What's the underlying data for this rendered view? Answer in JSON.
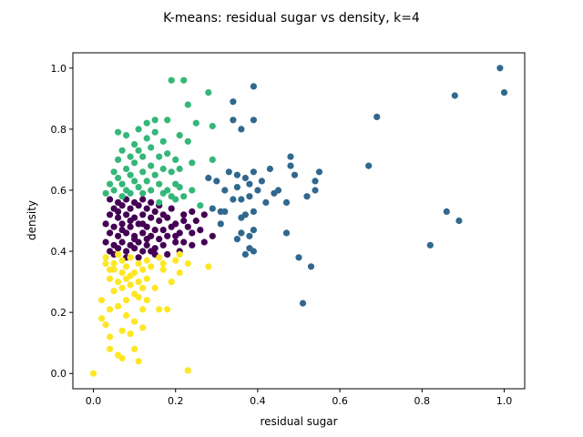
{
  "chart_data": {
    "type": "scatter",
    "title": "K-means: residual sugar vs density, k=4",
    "xlabel": "residual sugar",
    "ylabel": "density",
    "xlim": [
      -0.05,
      1.05
    ],
    "ylim": [
      -0.05,
      1.05
    ],
    "xticks": [
      0.0,
      0.2,
      0.4,
      0.6,
      0.8,
      1.0
    ],
    "yticks": [
      0.0,
      0.2,
      0.4,
      0.6,
      0.8,
      1.0
    ],
    "tick_labels_x": [
      "0.0",
      "0.2",
      "0.4",
      "0.6",
      "0.8",
      "1.0"
    ],
    "tick_labels_y": [
      "0.0",
      "0.2",
      "0.4",
      "0.6",
      "0.8",
      "1.0"
    ],
    "grid": false,
    "legend": "none",
    "clusters": [
      {
        "color": "#440154",
        "points": [
          [
            0.04,
            0.57
          ],
          [
            0.06,
            0.56
          ],
          [
            0.08,
            0.57
          ],
          [
            0.1,
            0.56
          ],
          [
            0.12,
            0.57
          ],
          [
            0.14,
            0.56
          ],
          [
            0.05,
            0.54
          ],
          [
            0.07,
            0.55
          ],
          [
            0.09,
            0.54
          ],
          [
            0.11,
            0.55
          ],
          [
            0.13,
            0.54
          ],
          [
            0.15,
            0.53
          ],
          [
            0.04,
            0.52
          ],
          [
            0.06,
            0.51
          ],
          [
            0.08,
            0.52
          ],
          [
            0.1,
            0.51
          ],
          [
            0.12,
            0.52
          ],
          [
            0.14,
            0.51
          ],
          [
            0.16,
            0.5
          ],
          [
            0.03,
            0.49
          ],
          [
            0.05,
            0.48
          ],
          [
            0.07,
            0.49
          ],
          [
            0.09,
            0.48
          ],
          [
            0.11,
            0.49
          ],
          [
            0.13,
            0.48
          ],
          [
            0.15,
            0.47
          ],
          [
            0.04,
            0.46
          ],
          [
            0.06,
            0.45
          ],
          [
            0.08,
            0.46
          ],
          [
            0.1,
            0.45
          ],
          [
            0.12,
            0.46
          ],
          [
            0.14,
            0.45
          ],
          [
            0.16,
            0.44
          ],
          [
            0.03,
            0.43
          ],
          [
            0.05,
            0.42
          ],
          [
            0.07,
            0.43
          ],
          [
            0.09,
            0.42
          ],
          [
            0.11,
            0.43
          ],
          [
            0.13,
            0.42
          ],
          [
            0.15,
            0.41
          ],
          [
            0.04,
            0.4
          ],
          [
            0.06,
            0.41
          ],
          [
            0.08,
            0.4
          ],
          [
            0.1,
            0.41
          ],
          [
            0.12,
            0.4
          ],
          [
            0.14,
            0.4
          ],
          [
            0.17,
            0.42
          ],
          [
            0.18,
            0.45
          ],
          [
            0.19,
            0.48
          ],
          [
            0.17,
            0.52
          ],
          [
            0.2,
            0.49
          ],
          [
            0.21,
            0.46
          ],
          [
            0.22,
            0.52
          ],
          [
            0.23,
            0.48
          ],
          [
            0.24,
            0.53
          ],
          [
            0.25,
            0.5
          ],
          [
            0.24,
            0.46
          ],
          [
            0.26,
            0.47
          ],
          [
            0.22,
            0.43
          ],
          [
            0.2,
            0.43
          ],
          [
            0.18,
            0.39
          ],
          [
            0.21,
            0.4
          ],
          [
            0.24,
            0.42
          ],
          [
            0.27,
            0.52
          ],
          [
            0.29,
            0.45
          ],
          [
            0.27,
            0.43
          ],
          [
            0.19,
            0.54
          ],
          [
            0.16,
            0.55
          ],
          [
            0.06,
            0.53
          ],
          [
            0.09,
            0.5
          ],
          [
            0.12,
            0.49
          ],
          [
            0.07,
            0.47
          ],
          [
            0.1,
            0.44
          ],
          [
            0.13,
            0.44
          ],
          [
            0.08,
            0.38
          ],
          [
            0.11,
            0.38
          ],
          [
            0.05,
            0.39
          ],
          [
            0.15,
            0.39
          ],
          [
            0.17,
            0.47
          ],
          [
            0.2,
            0.45
          ],
          [
            0.22,
            0.5
          ],
          [
            0.18,
            0.51
          ]
        ]
      },
      {
        "color": "#31688e",
        "points": [
          [
            0.29,
            0.54
          ],
          [
            0.3,
            0.63
          ],
          [
            0.31,
            0.53
          ],
          [
            0.32,
            0.6
          ],
          [
            0.32,
            0.53
          ],
          [
            0.33,
            0.66
          ],
          [
            0.34,
            0.57
          ],
          [
            0.34,
            0.89
          ],
          [
            0.34,
            0.83
          ],
          [
            0.35,
            0.61
          ],
          [
            0.35,
            0.65
          ],
          [
            0.36,
            0.8
          ],
          [
            0.36,
            0.57
          ],
          [
            0.36,
            0.51
          ],
          [
            0.37,
            0.52
          ],
          [
            0.37,
            0.64
          ],
          [
            0.38,
            0.62
          ],
          [
            0.38,
            0.58
          ],
          [
            0.38,
            0.45
          ],
          [
            0.39,
            0.94
          ],
          [
            0.39,
            0.83
          ],
          [
            0.39,
            0.66
          ],
          [
            0.39,
            0.53
          ],
          [
            0.39,
            0.47
          ],
          [
            0.39,
            0.4
          ],
          [
            0.4,
            0.6
          ],
          [
            0.41,
            0.63
          ],
          [
            0.42,
            0.56
          ],
          [
            0.43,
            0.67
          ],
          [
            0.44,
            0.59
          ],
          [
            0.45,
            0.6
          ],
          [
            0.47,
            0.56
          ],
          [
            0.47,
            0.46
          ],
          [
            0.48,
            0.71
          ],
          [
            0.48,
            0.68
          ],
          [
            0.49,
            0.65
          ],
          [
            0.5,
            0.38
          ],
          [
            0.51,
            0.23
          ],
          [
            0.52,
            0.58
          ],
          [
            0.53,
            0.35
          ],
          [
            0.54,
            0.6
          ],
          [
            0.54,
            0.63
          ],
          [
            0.55,
            0.66
          ],
          [
            0.37,
            0.39
          ],
          [
            0.38,
            0.41
          ],
          [
            0.36,
            0.46
          ],
          [
            0.28,
            0.64
          ],
          [
            0.31,
            0.49
          ],
          [
            0.35,
            0.44
          ],
          [
            0.67,
            0.68
          ],
          [
            0.69,
            0.84
          ],
          [
            0.82,
            0.42
          ],
          [
            0.86,
            0.53
          ],
          [
            0.88,
            0.91
          ],
          [
            0.89,
            0.5
          ],
          [
            0.99,
            1.0
          ],
          [
            1.0,
            0.92
          ]
        ]
      },
      {
        "color": "#35b779",
        "points": [
          [
            0.03,
            0.59
          ],
          [
            0.04,
            0.62
          ],
          [
            0.05,
            0.66
          ],
          [
            0.05,
            0.6
          ],
          [
            0.06,
            0.64
          ],
          [
            0.06,
            0.7
          ],
          [
            0.07,
            0.73
          ],
          [
            0.07,
            0.58
          ],
          [
            0.07,
            0.62
          ],
          [
            0.08,
            0.67
          ],
          [
            0.08,
            0.6
          ],
          [
            0.08,
            0.78
          ],
          [
            0.09,
            0.65
          ],
          [
            0.09,
            0.71
          ],
          [
            0.09,
            0.59
          ],
          [
            0.1,
            0.75
          ],
          [
            0.1,
            0.63
          ],
          [
            0.1,
            0.69
          ],
          [
            0.11,
            0.61
          ],
          [
            0.11,
            0.73
          ],
          [
            0.11,
            0.8
          ],
          [
            0.12,
            0.66
          ],
          [
            0.12,
            0.59
          ],
          [
            0.12,
            0.71
          ],
          [
            0.13,
            0.77
          ],
          [
            0.13,
            0.63
          ],
          [
            0.13,
            0.82
          ],
          [
            0.14,
            0.68
          ],
          [
            0.14,
            0.6
          ],
          [
            0.14,
            0.74
          ],
          [
            0.15,
            0.65
          ],
          [
            0.15,
            0.79
          ],
          [
            0.15,
            0.83
          ],
          [
            0.16,
            0.71
          ],
          [
            0.16,
            0.62
          ],
          [
            0.17,
            0.76
          ],
          [
            0.17,
            0.67
          ],
          [
            0.18,
            0.6
          ],
          [
            0.18,
            0.72
          ],
          [
            0.18,
            0.83
          ],
          [
            0.19,
            0.66
          ],
          [
            0.19,
            0.96
          ],
          [
            0.2,
            0.7
          ],
          [
            0.2,
            0.62
          ],
          [
            0.21,
            0.61
          ],
          [
            0.21,
            0.67
          ],
          [
            0.22,
            0.96
          ],
          [
            0.22,
            0.58
          ],
          [
            0.23,
            0.88
          ],
          [
            0.23,
            0.76
          ],
          [
            0.24,
            0.6
          ],
          [
            0.24,
            0.69
          ],
          [
            0.25,
            0.82
          ],
          [
            0.26,
            0.55
          ],
          [
            0.28,
            0.92
          ],
          [
            0.29,
            0.7
          ],
          [
            0.29,
            0.81
          ],
          [
            0.06,
            0.79
          ],
          [
            0.16,
            0.56
          ],
          [
            0.19,
            0.58
          ],
          [
            0.21,
            0.78
          ],
          [
            0.17,
            0.59
          ],
          [
            0.2,
            0.57
          ]
        ]
      },
      {
        "color": "#fde725",
        "points": [
          [
            0.0,
            0.0
          ],
          [
            0.02,
            0.24
          ],
          [
            0.02,
            0.18
          ],
          [
            0.03,
            0.38
          ],
          [
            0.03,
            0.16
          ],
          [
            0.04,
            0.31
          ],
          [
            0.04,
            0.21
          ],
          [
            0.04,
            0.12
          ],
          [
            0.04,
            0.08
          ],
          [
            0.05,
            0.34
          ],
          [
            0.05,
            0.27
          ],
          [
            0.05,
            0.36
          ],
          [
            0.06,
            0.3
          ],
          [
            0.06,
            0.22
          ],
          [
            0.06,
            0.06
          ],
          [
            0.07,
            0.33
          ],
          [
            0.07,
            0.37
          ],
          [
            0.07,
            0.28
          ],
          [
            0.07,
            0.14
          ],
          [
            0.07,
            0.05
          ],
          [
            0.08,
            0.35
          ],
          [
            0.08,
            0.31
          ],
          [
            0.08,
            0.24
          ],
          [
            0.08,
            0.19
          ],
          [
            0.09,
            0.38
          ],
          [
            0.09,
            0.29
          ],
          [
            0.09,
            0.13
          ],
          [
            0.1,
            0.33
          ],
          [
            0.1,
            0.26
          ],
          [
            0.1,
            0.17
          ],
          [
            0.1,
            0.08
          ],
          [
            0.11,
            0.36
          ],
          [
            0.11,
            0.3
          ],
          [
            0.11,
            0.04
          ],
          [
            0.12,
            0.34
          ],
          [
            0.12,
            0.28
          ],
          [
            0.12,
            0.21
          ],
          [
            0.12,
            0.15
          ],
          [
            0.13,
            0.37
          ],
          [
            0.13,
            0.31
          ],
          [
            0.13,
            0.24
          ],
          [
            0.14,
            0.35
          ],
          [
            0.15,
            0.28
          ],
          [
            0.16,
            0.38
          ],
          [
            0.16,
            0.21
          ],
          [
            0.17,
            0.34
          ],
          [
            0.17,
            0.36
          ],
          [
            0.18,
            0.21
          ],
          [
            0.19,
            0.3
          ],
          [
            0.2,
            0.37
          ],
          [
            0.21,
            0.33
          ],
          [
            0.21,
            0.39
          ],
          [
            0.23,
            0.36
          ],
          [
            0.23,
            0.01
          ],
          [
            0.28,
            0.35
          ],
          [
            0.03,
            0.36
          ],
          [
            0.04,
            0.34
          ],
          [
            0.06,
            0.39
          ],
          [
            0.09,
            0.32
          ],
          [
            0.11,
            0.25
          ]
        ]
      }
    ]
  }
}
